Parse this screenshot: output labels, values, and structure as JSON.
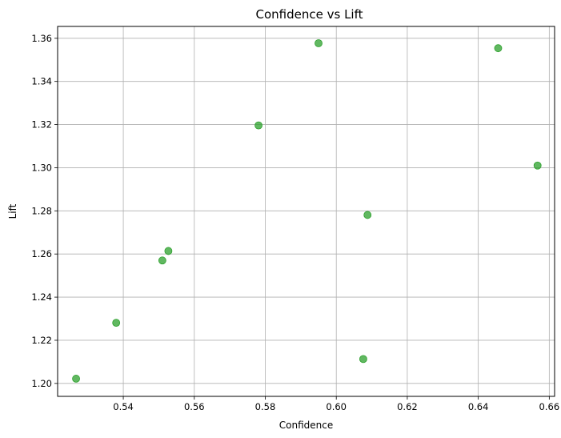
{
  "chart_data": {
    "type": "scatter",
    "title": "Confidence vs Lift",
    "xlabel": "Confidence",
    "ylabel": "Lift",
    "xlim": [
      0.5215,
      0.6615
    ],
    "ylim": [
      1.194,
      1.3655
    ],
    "xticks": [
      "0.54",
      "0.56",
      "0.58",
      "0.60",
      "0.62",
      "0.64",
      "0.66"
    ],
    "yticks": [
      "1.20",
      "1.22",
      "1.24",
      "1.26",
      "1.28",
      "1.30",
      "1.32",
      "1.34",
      "1.36"
    ],
    "grid": true,
    "marker_color": "#2ca02c",
    "points": [
      {
        "x": 0.5267,
        "y": 1.2022
      },
      {
        "x": 0.538,
        "y": 1.2281
      },
      {
        "x": 0.551,
        "y": 1.257
      },
      {
        "x": 0.5527,
        "y": 1.2614
      },
      {
        "x": 0.5781,
        "y": 1.3196
      },
      {
        "x": 0.595,
        "y": 1.3577
      },
      {
        "x": 0.6076,
        "y": 1.2113
      },
      {
        "x": 0.6088,
        "y": 1.2781
      },
      {
        "x": 0.6456,
        "y": 1.3554
      },
      {
        "x": 0.6567,
        "y": 1.301
      }
    ]
  }
}
